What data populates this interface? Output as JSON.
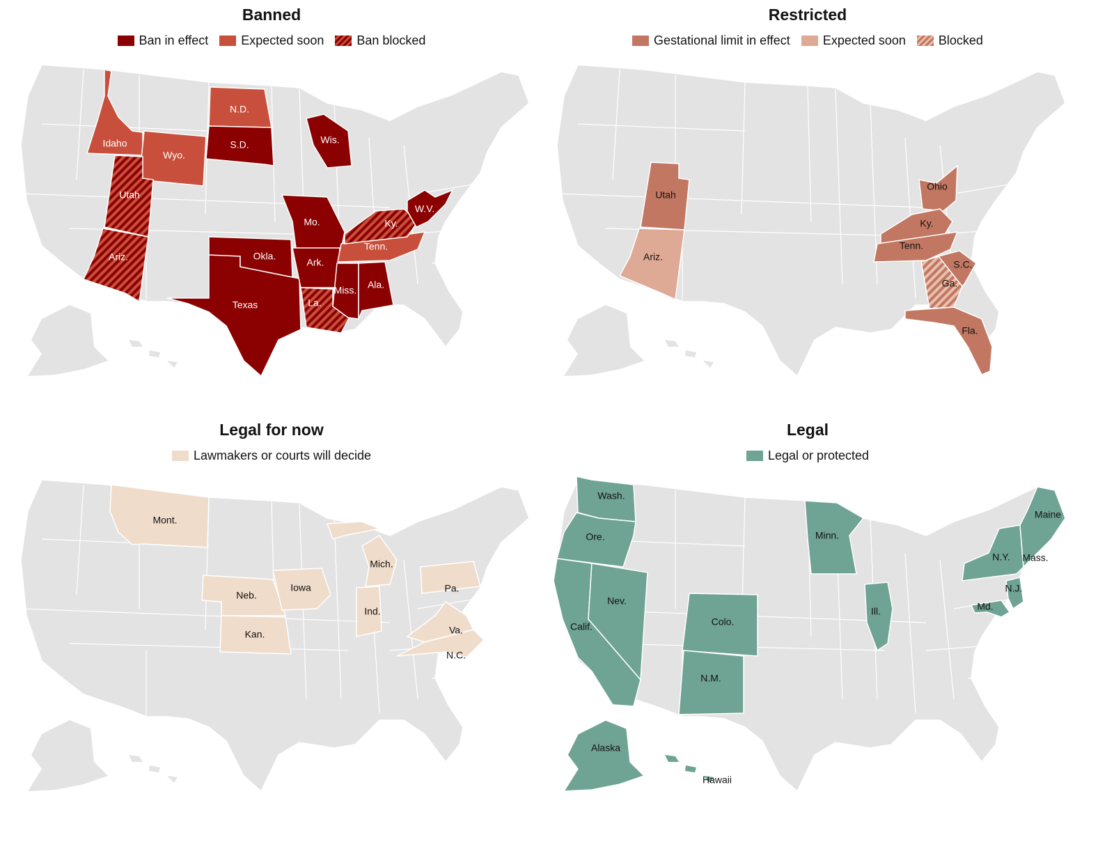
{
  "colors": {
    "base_gray": "#e3e3e3",
    "banned": "#8b0000",
    "banned_expected": "#c84f3b",
    "restricted": "#c27762",
    "restricted_expected": "#deaa95",
    "legal_for_now": "#f0dccb",
    "legal": "#6fa393",
    "border": "#ffffff"
  },
  "panels": [
    {
      "title": "Banned",
      "legend": [
        {
          "label": "Ban in effect",
          "color": "#8b0000",
          "pattern": false
        },
        {
          "label": "Expected soon",
          "color": "#c84f3b",
          "pattern": false
        },
        {
          "label": "Ban blocked",
          "color": "#8b0000",
          "pattern": true
        }
      ],
      "states": [
        {
          "name": "Idaho",
          "status": "Expected soon",
          "label_color": "#ffffff"
        },
        {
          "name": "Wyo.",
          "status": "Expected soon",
          "label_color": "#ffffff"
        },
        {
          "name": "N.D.",
          "status": "Expected soon",
          "label_color": "#ffffff"
        },
        {
          "name": "S.D.",
          "status": "Ban in effect",
          "label_color": "#ffffff"
        },
        {
          "name": "Wis.",
          "status": "Ban in effect",
          "label_color": "#ffffff"
        },
        {
          "name": "Utah",
          "status": "Ban blocked",
          "label_color": "#ffffff"
        },
        {
          "name": "Ariz.",
          "status": "Ban blocked",
          "label_color": "#ffffff"
        },
        {
          "name": "Mo.",
          "status": "Ban in effect",
          "label_color": "#ffffff"
        },
        {
          "name": "Okla.",
          "status": "Ban in effect",
          "label_color": "#ffffff"
        },
        {
          "name": "Ark.",
          "status": "Ban in effect",
          "label_color": "#ffffff"
        },
        {
          "name": "Texas",
          "status": "Ban in effect",
          "label_color": "#ffffff"
        },
        {
          "name": "La.",
          "status": "Ban blocked",
          "label_color": "#ffffff"
        },
        {
          "name": "Miss.",
          "status": "Ban in effect",
          "label_color": "#ffffff"
        },
        {
          "name": "Ala.",
          "status": "Ban in effect",
          "label_color": "#ffffff"
        },
        {
          "name": "Tenn.",
          "status": "Expected soon",
          "label_color": "#ffffff"
        },
        {
          "name": "Ky.",
          "status": "Ban blocked",
          "label_color": "#ffffff"
        },
        {
          "name": "W.V.",
          "status": "Ban in effect",
          "label_color": "#ffffff"
        }
      ]
    },
    {
      "title": "Restricted",
      "legend": [
        {
          "label": "Gestational limit in effect",
          "color": "#c27762",
          "pattern": false
        },
        {
          "label": "Expected soon",
          "color": "#deaa95",
          "pattern": false
        },
        {
          "label": "Blocked",
          "color": "#c27762",
          "pattern": true
        }
      ],
      "states": [
        {
          "name": "Utah",
          "status": "Gestational limit in effect",
          "label_color": "#121212"
        },
        {
          "name": "Ariz.",
          "status": "Expected soon",
          "label_color": "#121212"
        },
        {
          "name": "Ohio",
          "status": "Gestational limit in effect",
          "label_color": "#121212"
        },
        {
          "name": "Ky.",
          "status": "Gestational limit in effect",
          "label_color": "#121212"
        },
        {
          "name": "Tenn.",
          "status": "Gestational limit in effect",
          "label_color": "#121212"
        },
        {
          "name": "S.C.",
          "status": "Gestational limit in effect",
          "label_color": "#121212"
        },
        {
          "name": "Ga.",
          "status": "Blocked",
          "label_color": "#121212"
        },
        {
          "name": "Fla.",
          "status": "Gestational limit in effect",
          "label_color": "#121212"
        }
      ]
    },
    {
      "title": "Legal for now",
      "legend": [
        {
          "label": "Lawmakers or courts will decide",
          "color": "#f0dccb",
          "pattern": false
        }
      ],
      "states": [
        {
          "name": "Mont.",
          "status": "Lawmakers or courts will decide",
          "label_color": "#121212"
        },
        {
          "name": "Neb.",
          "status": "Lawmakers or courts will decide",
          "label_color": "#121212"
        },
        {
          "name": "Kan.",
          "status": "Lawmakers or courts will decide",
          "label_color": "#121212"
        },
        {
          "name": "Iowa",
          "status": "Lawmakers or courts will decide",
          "label_color": "#121212"
        },
        {
          "name": "Mich.",
          "status": "Lawmakers or courts will decide",
          "label_color": "#121212"
        },
        {
          "name": "Ind.",
          "status": "Lawmakers or courts will decide",
          "label_color": "#121212"
        },
        {
          "name": "Pa.",
          "status": "Lawmakers or courts will decide",
          "label_color": "#121212"
        },
        {
          "name": "Va.",
          "status": "Lawmakers or courts will decide",
          "label_color": "#121212"
        },
        {
          "name": "N.C.",
          "status": "Lawmakers or courts will decide",
          "label_color": "#121212"
        }
      ]
    },
    {
      "title": "Legal",
      "legend": [
        {
          "label": "Legal or protected",
          "color": "#6fa393",
          "pattern": false
        }
      ],
      "states": [
        {
          "name": "Wash.",
          "status": "Legal or protected",
          "label_color": "#121212"
        },
        {
          "name": "Ore.",
          "status": "Legal or protected",
          "label_color": "#121212"
        },
        {
          "name": "Calif.",
          "status": "Legal or protected",
          "label_color": "#121212"
        },
        {
          "name": "Nev.",
          "status": "Legal or protected",
          "label_color": "#121212"
        },
        {
          "name": "Colo.",
          "status": "Legal or protected",
          "label_color": "#121212"
        },
        {
          "name": "N.M.",
          "status": "Legal or protected",
          "label_color": "#121212"
        },
        {
          "name": "Minn.",
          "status": "Legal or protected",
          "label_color": "#121212"
        },
        {
          "name": "Ill.",
          "status": "Legal or protected",
          "label_color": "#121212"
        },
        {
          "name": "N.Y.",
          "status": "Legal or protected",
          "label_color": "#121212"
        },
        {
          "name": "Maine",
          "status": "Legal or protected",
          "label_color": "#121212"
        },
        {
          "name": "Mass.",
          "status": "Legal or protected",
          "label_color": "#121212"
        },
        {
          "name": "N.J.",
          "status": "Legal or protected",
          "label_color": "#121212"
        },
        {
          "name": "Md.",
          "status": "Legal or protected",
          "label_color": "#121212"
        },
        {
          "name": "Alaska",
          "status": "Legal or protected",
          "label_color": "#121212"
        },
        {
          "name": "Hawaii",
          "status": "Legal or protected",
          "label_color": "#121212"
        }
      ]
    }
  ]
}
